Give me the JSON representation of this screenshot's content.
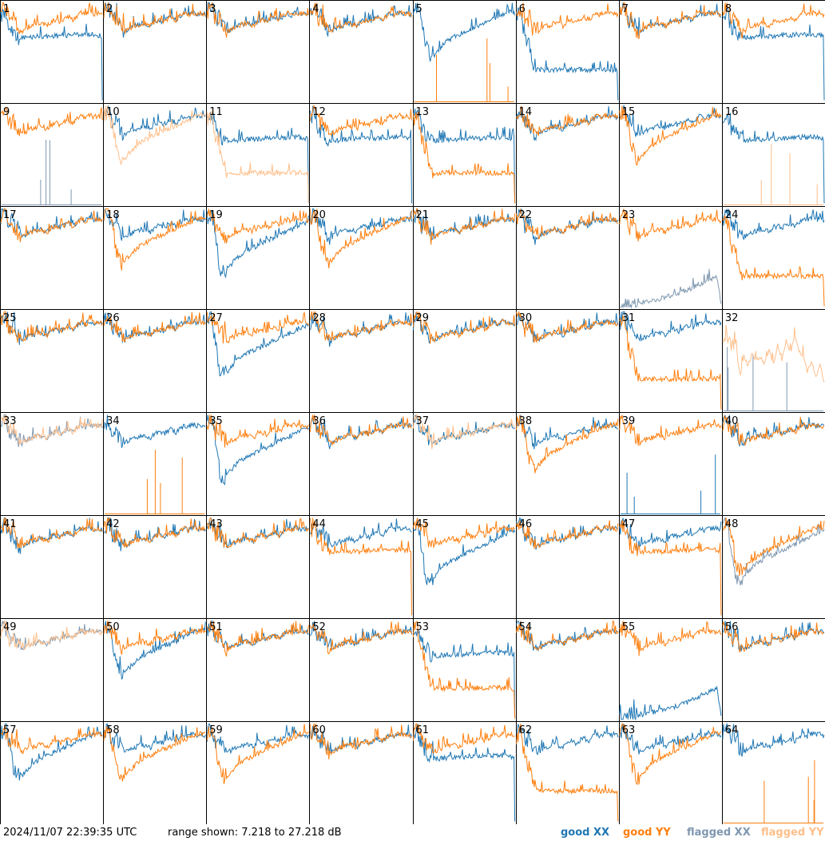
{
  "chart_data": {
    "type": "line",
    "layout": "small-multiples 8x8",
    "footer": {
      "timestamp": "2024/11/07 22:39:35 UTC",
      "range_label": "range shown: 7.218 to 27.218 dB"
    },
    "ylim": [
      7.218,
      27.218
    ],
    "grid": false,
    "legend_position": "bottom-right",
    "legend": [
      {
        "key": "gx",
        "label": "good XX",
        "color": "#1f77b4"
      },
      {
        "key": "gy",
        "label": "good YY",
        "color": "#ff7f0e"
      },
      {
        "key": "fx",
        "label": "flagged XX",
        "color": "#7f98b0"
      },
      {
        "key": "fy",
        "label": "flagged YY",
        "color": "#ffbf8a"
      }
    ],
    "presets": {
      "base": [
        0.12,
        0.05,
        0.18,
        0.17,
        0.27,
        0.3,
        0.27,
        0.25,
        0.24,
        0.22,
        0.23,
        0.25,
        0.2,
        0.19,
        0.21,
        0.18,
        0.16,
        0.19,
        0.15,
        0.12,
        0.14,
        0.11,
        0.13,
        0.12,
        0.14
      ],
      "dip": [
        0.12,
        0.05,
        0.22,
        0.45,
        0.55,
        0.53,
        0.48,
        0.44,
        0.4,
        0.37,
        0.35,
        0.33,
        0.31,
        0.29,
        0.27,
        0.25,
        0.24,
        0.22,
        0.2,
        0.17,
        0.16,
        0.14,
        0.12,
        0.11,
        0.12
      ],
      "deep": [
        0.1,
        0.05,
        0.3,
        0.62,
        0.65,
        0.6,
        0.55,
        0.5,
        0.47,
        0.44,
        0.42,
        0.4,
        0.38,
        0.36,
        0.34,
        0.32,
        0.3,
        0.28,
        0.26,
        0.24,
        0.22,
        0.2,
        0.18,
        0.16,
        0.15
      ],
      "flat": [
        0.15,
        0.1,
        0.25,
        0.3,
        0.34,
        0.36,
        0.36,
        0.36,
        0.35,
        0.35,
        0.35,
        0.35,
        0.35,
        0.34,
        0.34,
        0.34,
        0.34,
        0.33,
        0.33,
        0.33,
        0.33,
        0.33,
        0.33,
        0.34,
        0.35
      ],
      "low": [
        0.15,
        0.1,
        0.35,
        0.45,
        0.62,
        0.68,
        0.68,
        0.68,
        0.68,
        0.68,
        0.68,
        0.68,
        0.68,
        0.68,
        0.68,
        0.68,
        0.68,
        0.68,
        0.68,
        0.68,
        0.68,
        0.68,
        0.68,
        0.68,
        0.69
      ],
      "rise": [
        0.98,
        0.97,
        0.96,
        0.95,
        0.95,
        0.94,
        0.94,
        0.93,
        0.92,
        0.91,
        0.9,
        0.89,
        0.88,
        0.87,
        0.85,
        0.83,
        0.82,
        0.8,
        0.78,
        0.76,
        0.74,
        0.72,
        0.7,
        0.68,
        0.95
      ],
      "wild": [
        0.3,
        0.2,
        0.35,
        0.28,
        0.6,
        0.45,
        0.55,
        0.42,
        0.5,
        0.48,
        0.52,
        0.38,
        0.55,
        0.35,
        0.48,
        0.3,
        0.42,
        0.25,
        0.4,
        0.45,
        0.6,
        0.5,
        0.65,
        0.55,
        0.7
      ],
      "spike": [
        1,
        1,
        1,
        1,
        1,
        1,
        1,
        1,
        1,
        1,
        1,
        1,
        1,
        1,
        1,
        1,
        1,
        1,
        1,
        1,
        1,
        1,
        1,
        1,
        1
      ]
    },
    "panels": [
      {
        "id": "1",
        "s": [
          [
            "gx",
            "flat"
          ],
          [
            "gy",
            "base"
          ]
        ]
      },
      {
        "id": "2",
        "s": [
          [
            "gx",
            "base"
          ],
          [
            "gy",
            "base"
          ]
        ]
      },
      {
        "id": "3",
        "s": [
          [
            "gx",
            "base"
          ],
          [
            "gy",
            "base"
          ]
        ]
      },
      {
        "id": "4",
        "s": [
          [
            "gx",
            "base"
          ],
          [
            "gy",
            "base"
          ]
        ]
      },
      {
        "id": "5",
        "s": [
          [
            "gx",
            "dip"
          ],
          [
            "gy",
            "spike"
          ]
        ]
      },
      {
        "id": "6",
        "s": [
          [
            "gx",
            "low"
          ],
          [
            "gy",
            "base"
          ]
        ]
      },
      {
        "id": "7",
        "s": [
          [
            "gx",
            "base"
          ],
          [
            "gy",
            "base"
          ]
        ]
      },
      {
        "id": "8",
        "s": [
          [
            "gx",
            "flat"
          ],
          [
            "gy",
            "base"
          ]
        ]
      },
      {
        "id": "9",
        "s": [
          [
            "fx",
            "spike"
          ],
          [
            "gy",
            "base"
          ]
        ]
      },
      {
        "id": "10",
        "s": [
          [
            "gx",
            "base"
          ],
          [
            "fy",
            "dip"
          ]
        ]
      },
      {
        "id": "11",
        "s": [
          [
            "gx",
            "flat"
          ],
          [
            "fy",
            "low"
          ]
        ]
      },
      {
        "id": "12",
        "s": [
          [
            "gx",
            "flat"
          ],
          [
            "gy",
            "base"
          ]
        ]
      },
      {
        "id": "13",
        "s": [
          [
            "gx",
            "flat"
          ],
          [
            "gy",
            "low"
          ]
        ]
      },
      {
        "id": "14",
        "s": [
          [
            "gx",
            "base"
          ],
          [
            "gy",
            "base"
          ]
        ]
      },
      {
        "id": "15",
        "s": [
          [
            "gx",
            "base"
          ],
          [
            "gy",
            "dip"
          ]
        ]
      },
      {
        "id": "16",
        "s": [
          [
            "gx",
            "flat"
          ],
          [
            "fy",
            "spike"
          ]
        ]
      },
      {
        "id": "17",
        "s": [
          [
            "gx",
            "base"
          ],
          [
            "gy",
            "base"
          ]
        ]
      },
      {
        "id": "18",
        "s": [
          [
            "gx",
            "base"
          ],
          [
            "gy",
            "dip"
          ]
        ]
      },
      {
        "id": "19",
        "s": [
          [
            "gx",
            "deep"
          ],
          [
            "gy",
            "base"
          ]
        ]
      },
      {
        "id": "20",
        "s": [
          [
            "gx",
            "base"
          ],
          [
            "gy",
            "dip"
          ]
        ]
      },
      {
        "id": "21",
        "s": [
          [
            "gx",
            "base"
          ],
          [
            "gy",
            "base"
          ]
        ]
      },
      {
        "id": "22",
        "s": [
          [
            "gx",
            "base"
          ],
          [
            "gy",
            "base"
          ]
        ]
      },
      {
        "id": "23",
        "s": [
          [
            "fx",
            "rise"
          ],
          [
            "gy",
            "base"
          ]
        ]
      },
      {
        "id": "24",
        "s": [
          [
            "gx",
            "base"
          ],
          [
            "gy",
            "low"
          ]
        ]
      },
      {
        "id": "25",
        "s": [
          [
            "gx",
            "base"
          ],
          [
            "gy",
            "base"
          ]
        ]
      },
      {
        "id": "26",
        "s": [
          [
            "gx",
            "base"
          ],
          [
            "gy",
            "base"
          ]
        ]
      },
      {
        "id": "27",
        "s": [
          [
            "gx",
            "deep"
          ],
          [
            "gy",
            "base"
          ]
        ]
      },
      {
        "id": "28",
        "s": [
          [
            "gx",
            "base"
          ],
          [
            "gy",
            "base"
          ]
        ]
      },
      {
        "id": "29",
        "s": [
          [
            "gx",
            "base"
          ],
          [
            "gy",
            "base"
          ]
        ]
      },
      {
        "id": "30",
        "s": [
          [
            "gx",
            "base"
          ],
          [
            "gy",
            "base"
          ]
        ]
      },
      {
        "id": "31",
        "s": [
          [
            "gx",
            "base"
          ],
          [
            "gy",
            "low"
          ]
        ]
      },
      {
        "id": "32",
        "s": [
          [
            "fx",
            "spike"
          ],
          [
            "fy",
            "wild"
          ]
        ]
      },
      {
        "id": "33",
        "s": [
          [
            "fx",
            "base"
          ],
          [
            "fy",
            "base"
          ]
        ]
      },
      {
        "id": "34",
        "s": [
          [
            "gx",
            "base"
          ],
          [
            "gy",
            "spike"
          ]
        ]
      },
      {
        "id": "35",
        "s": [
          [
            "gx",
            "deep"
          ],
          [
            "gy",
            "base"
          ]
        ]
      },
      {
        "id": "36",
        "s": [
          [
            "gx",
            "base"
          ],
          [
            "gy",
            "base"
          ]
        ]
      },
      {
        "id": "37",
        "s": [
          [
            "gx",
            "base"
          ],
          [
            "fy",
            "base"
          ]
        ]
      },
      {
        "id": "38",
        "s": [
          [
            "gx",
            "base"
          ],
          [
            "gy",
            "dip"
          ]
        ]
      },
      {
        "id": "39",
        "s": [
          [
            "gx",
            "spike"
          ],
          [
            "gy",
            "base"
          ]
        ]
      },
      {
        "id": "40",
        "s": [
          [
            "gx",
            "base"
          ],
          [
            "gy",
            "base"
          ]
        ]
      },
      {
        "id": "41",
        "s": [
          [
            "gx",
            "base"
          ],
          [
            "gy",
            "base"
          ]
        ]
      },
      {
        "id": "42",
        "s": [
          [
            "gx",
            "base"
          ],
          [
            "gy",
            "base"
          ]
        ]
      },
      {
        "id": "43",
        "s": [
          [
            "gx",
            "base"
          ],
          [
            "gy",
            "base"
          ]
        ]
      },
      {
        "id": "44",
        "s": [
          [
            "gx",
            "base"
          ],
          [
            "gy",
            "flat"
          ]
        ]
      },
      {
        "id": "45",
        "s": [
          [
            "gx",
            "deep"
          ],
          [
            "gy",
            "base"
          ]
        ]
      },
      {
        "id": "46",
        "s": [
          [
            "gx",
            "base"
          ],
          [
            "gy",
            "base"
          ]
        ]
      },
      {
        "id": "47",
        "s": [
          [
            "gx",
            "base"
          ],
          [
            "gy",
            "flat"
          ]
        ]
      },
      {
        "id": "48",
        "s": [
          [
            "fx",
            "deep"
          ],
          [
            "gy",
            "dip"
          ]
        ]
      },
      {
        "id": "49",
        "s": [
          [
            "fx",
            "base"
          ],
          [
            "fy",
            "base"
          ]
        ]
      },
      {
        "id": "50",
        "s": [
          [
            "gx",
            "dip"
          ],
          [
            "gy",
            "base"
          ]
        ]
      },
      {
        "id": "51",
        "s": [
          [
            "gx",
            "base"
          ],
          [
            "gy",
            "base"
          ]
        ]
      },
      {
        "id": "52",
        "s": [
          [
            "gx",
            "base"
          ],
          [
            "gy",
            "base"
          ]
        ]
      },
      {
        "id": "53",
        "s": [
          [
            "gx",
            "flat"
          ],
          [
            "gy",
            "low"
          ]
        ]
      },
      {
        "id": "54",
        "s": [
          [
            "gx",
            "base"
          ],
          [
            "gy",
            "base"
          ]
        ]
      },
      {
        "id": "55",
        "s": [
          [
            "gx",
            "rise"
          ],
          [
            "gy",
            "base"
          ]
        ]
      },
      {
        "id": "56",
        "s": [
          [
            "gx",
            "base"
          ],
          [
            "gy",
            "base"
          ]
        ]
      },
      {
        "id": "57",
        "s": [
          [
            "gx",
            "dip"
          ],
          [
            "gy",
            "base"
          ]
        ]
      },
      {
        "id": "58",
        "s": [
          [
            "gx",
            "base"
          ],
          [
            "gy",
            "dip"
          ]
        ]
      },
      {
        "id": "59",
        "s": [
          [
            "gx",
            "base"
          ],
          [
            "gy",
            "dip"
          ]
        ]
      },
      {
        "id": "60",
        "s": [
          [
            "gx",
            "base"
          ],
          [
            "gy",
            "base"
          ]
        ]
      },
      {
        "id": "61",
        "s": [
          [
            "gx",
            "flat"
          ],
          [
            "gy",
            "base"
          ]
        ]
      },
      {
        "id": "62",
        "s": [
          [
            "gx",
            "base"
          ],
          [
            "gy",
            "low"
          ]
        ]
      },
      {
        "id": "63",
        "s": [
          [
            "gx",
            "base"
          ],
          [
            "gy",
            "dip"
          ]
        ]
      },
      {
        "id": "64",
        "s": [
          [
            "gx",
            "base"
          ],
          [
            "gy",
            "spike"
          ]
        ]
      }
    ]
  }
}
